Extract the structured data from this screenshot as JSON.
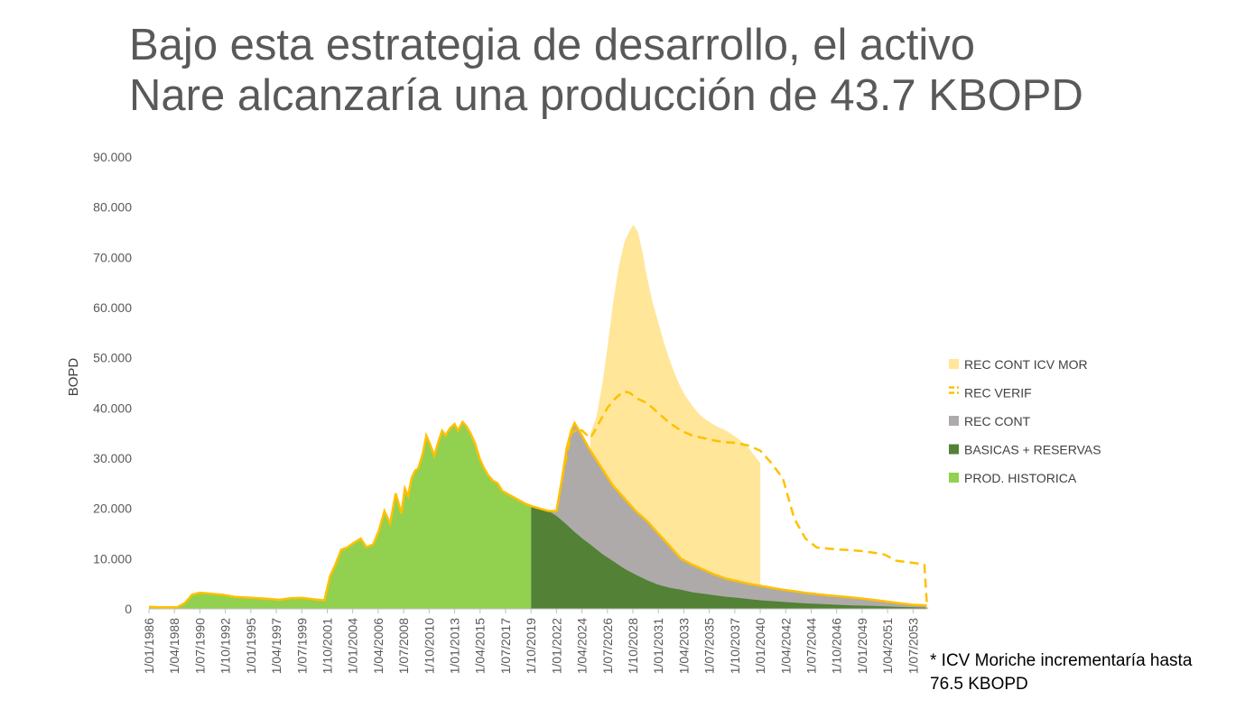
{
  "title": {
    "line1": "Bajo esta estrategia de desarrollo, el activo",
    "line2": "Nare alcanzaría una producción de 43.7 KBOPD"
  },
  "note": {
    "line1": "* ICV Moriche incrementaría hasta",
    "line2": "76.5 KBOPD"
  },
  "colors": {
    "prod_historica": "#92d050",
    "basicas_reservas": "#538135",
    "rec_cont": "#aeaaaa",
    "rec_cont_icv_mor": "#ffe699",
    "rec_verif": "#ffc000",
    "axis_text": "#595959"
  },
  "chart_data": {
    "type": "area",
    "ylabel": "BOPD",
    "xlabel": "",
    "ylim": [
      0,
      90000
    ],
    "yticks": [
      0,
      10000,
      20000,
      30000,
      40000,
      50000,
      60000,
      70000,
      80000,
      90000
    ],
    "ytick_labels": [
      "0",
      "10.000",
      "20.000",
      "30.000",
      "40.000",
      "50.000",
      "60.000",
      "70.000",
      "80.000",
      "90.000"
    ],
    "xlim": [
      1986.0,
      2054.75
    ],
    "xtick_labels": [
      "1/01/1986",
      "1/04/1988",
      "1/07/1990",
      "1/10/1992",
      "1/01/1995",
      "1/04/1997",
      "1/07/1999",
      "1/10/2001",
      "1/01/2004",
      "1/04/2006",
      "1/07/2008",
      "1/10/2010",
      "1/01/2013",
      "1/04/2015",
      "1/07/2017",
      "1/10/2019",
      "1/01/2022",
      "1/04/2024",
      "1/07/2026",
      "1/10/2028",
      "1/01/2031",
      "1/04/2033",
      "1/07/2035",
      "1/10/2037",
      "1/01/2040",
      "1/04/2042",
      "1/07/2044",
      "1/10/2046",
      "1/01/2049",
      "1/04/2051",
      "1/07/2053"
    ],
    "xtick_years": [
      1986.0,
      1988.25,
      1990.5,
      1992.75,
      1995.0,
      1997.25,
      1999.5,
      2001.75,
      2004.0,
      2006.25,
      2008.5,
      2010.75,
      2013.0,
      2015.25,
      2017.5,
      2019.75,
      2022.0,
      2024.25,
      2026.5,
      2028.75,
      2031.0,
      2033.25,
      2035.5,
      2037.75,
      2040.0,
      2042.25,
      2044.5,
      2046.75,
      2049.0,
      2051.25,
      2053.5
    ],
    "legend_position": "right",
    "legend": [
      "REC CONT ICV MOR",
      "REC VERIF",
      "REC CONT",
      "BASICAS + RESERVAS",
      "PROD. HISTORICA"
    ],
    "series": [
      {
        "name": "PROD. HISTORICA",
        "style": "area",
        "x": [
          1986.0,
          1987.0,
          1988.5,
          1989.2,
          1989.8,
          1990.5,
          1991.5,
          1992.5,
          1993.5,
          1995.0,
          1996.5,
          1997.5,
          1998.5,
          1999.5,
          2000.5,
          2001.5,
          2002.0,
          2002.5,
          2003.0,
          2003.5,
          2004.0,
          2004.7,
          2005.2,
          2005.8,
          2006.3,
          2006.8,
          2007.3,
          2007.8,
          2008.3,
          2008.6,
          2008.9,
          2009.2,
          2009.5,
          2009.8,
          2010.2,
          2010.5,
          2010.8,
          2011.2,
          2011.6,
          2011.9,
          2012.2,
          2012.6,
          2013.0,
          2013.3,
          2013.7,
          2014.0,
          2014.4,
          2014.8,
          2015.2,
          2015.6,
          2016.0,
          2016.4,
          2016.8,
          2017.2,
          2017.6,
          2018.0,
          2018.4,
          2018.8,
          2019.2,
          2019.75
        ],
        "y": [
          400,
          300,
          300,
          1200,
          2800,
          3200,
          3000,
          2800,
          2400,
          2200,
          2000,
          1800,
          2100,
          2200,
          1900,
          1700,
          6500,
          9000,
          11800,
          12200,
          13000,
          14000,
          12300,
          12800,
          15500,
          19500,
          17000,
          23000,
          19000,
          24000,
          22500,
          26000,
          27500,
          28000,
          31000,
          34500,
          33000,
          30500,
          33500,
          35500,
          34500,
          36000,
          36800,
          35500,
          37200,
          36500,
          35000,
          33000,
          30000,
          28000,
          26500,
          25500,
          25000,
          23500,
          23000,
          22500,
          22000,
          21500,
          21000,
          20500
        ]
      },
      {
        "name": "BASICAS + RESERVAS",
        "style": "area",
        "x": [
          2019.75,
          2020.5,
          2021.3,
          2022.0,
          2022.8,
          2023.5,
          2024.3,
          2025.0,
          2026.0,
          2027.0,
          2028.0,
          2029.0,
          2030.0,
          2031.0,
          2032.0,
          2033.0,
          2034.0,
          2035.0,
          2036.0,
          2037.0,
          2038.0,
          2040.0,
          2042.0,
          2044.0,
          2046.0,
          2048.0,
          2050.0,
          2052.0,
          2053.5,
          2054.7
        ],
        "y": [
          20500,
          20000,
          19500,
          18500,
          17000,
          15500,
          14000,
          12800,
          11000,
          9500,
          8000,
          6800,
          5700,
          4800,
          4200,
          3800,
          3300,
          3000,
          2700,
          2400,
          2200,
          1700,
          1400,
          1100,
          900,
          700,
          600,
          400,
          300,
          250
        ]
      },
      {
        "name": "REC CONT",
        "style": "area",
        "x": [
          2019.75,
          2020.5,
          2021.3,
          2022.0,
          2022.5,
          2022.9,
          2023.3,
          2023.6,
          2024.0,
          2024.5,
          2025.0,
          2026.0,
          2027.0,
          2028.0,
          2029.0,
          2030.0,
          2031.0,
          2032.0,
          2033.0,
          2034.0,
          2035.0,
          2036.0,
          2037.0,
          2038.0,
          2039.0,
          2040.0,
          2041.0,
          2042.0,
          2044.0,
          2046.0,
          2048.0,
          2050.0,
          2052.0,
          2053.5,
          2054.7
        ],
        "y": [
          20500,
          20000,
          19500,
          19500,
          26000,
          32000,
          35500,
          37000,
          35500,
          33500,
          31500,
          28000,
          24500,
          22000,
          19500,
          17500,
          15000,
          12500,
          10000,
          8800,
          7800,
          6800,
          6000,
          5500,
          5000,
          4600,
          4200,
          3800,
          3200,
          2700,
          2300,
          1800,
          1200,
          800,
          700
        ]
      },
      {
        "name": "REC CONT ICV MOR",
        "style": "area",
        "x": [
          2025.0,
          2025.5,
          2026.0,
          2026.5,
          2027.0,
          2027.5,
          2028.0,
          2028.5,
          2028.8,
          2029.2,
          2029.6,
          2030.0,
          2030.5,
          2031.0,
          2031.5,
          2032.0,
          2032.5,
          2033.0,
          2033.5,
          2034.0,
          2034.5,
          2035.0,
          2036.0,
          2037.0,
          2038.0,
          2039.0,
          2039.5,
          2040.0
        ],
        "y": [
          35000,
          38000,
          44000,
          52000,
          61000,
          68000,
          73000,
          75500,
          76500,
          75000,
          71000,
          66000,
          61000,
          57000,
          53000,
          49500,
          46500,
          44000,
          42000,
          40500,
          39000,
          38000,
          36500,
          35500,
          34000,
          32000,
          30500,
          29000
        ]
      },
      {
        "name": "REC VERIF",
        "style": "dashed-line",
        "x": [
          2022.5,
          2023.3,
          2024.0,
          2025.0,
          2025.5,
          2026.0,
          2026.5,
          2027.0,
          2027.5,
          2028.0,
          2028.5,
          2029.0,
          2030.0,
          2031.0,
          2032.0,
          2033.0,
          2034.0,
          2035.0,
          2036.0,
          2037.0,
          2038.0,
          2039.0,
          2040.0,
          2041.0,
          2042.0,
          2042.5,
          2043.0,
          2044.0,
          2045.0,
          2046.0,
          2047.0,
          2048.0,
          2049.0,
          2050.0,
          2051.0,
          2052.0,
          2053.0,
          2054.0,
          2054.5,
          2054.75
        ],
        "y": [
          26000,
          35000,
          36000,
          34000,
          36000,
          38000,
          40000,
          41500,
          42500,
          43300,
          43000,
          42000,
          41000,
          39000,
          37000,
          35500,
          34500,
          34000,
          33500,
          33200,
          33000,
          32500,
          31500,
          29000,
          26000,
          22000,
          18000,
          14000,
          12200,
          12000,
          11800,
          11700,
          11500,
          11200,
          10800,
          9600,
          9300,
          9000,
          8800,
          0
        ]
      }
    ]
  }
}
